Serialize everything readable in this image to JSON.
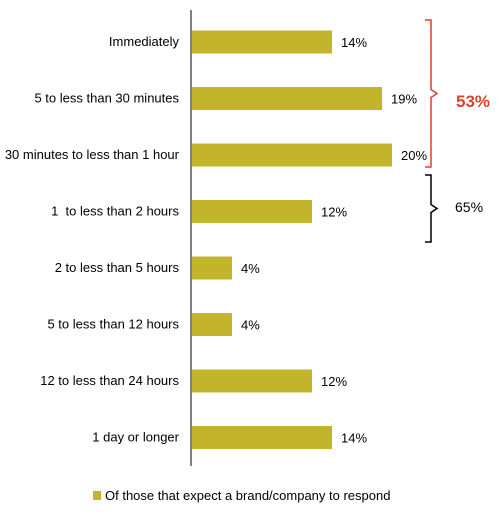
{
  "chart_data": {
    "type": "bar",
    "orientation": "horizontal",
    "categories": [
      "Immediately",
      "5 to less than 30 minutes",
      "30 minutes to less than 1 hour",
      "1  to less than 2 hours",
      "2 to less than 5 hours",
      "5 to less than 12 hours",
      "12 to less than 24 hours",
      "1 day or longer"
    ],
    "series": [
      {
        "name": "Of those that expect a brand/company to respond",
        "values": [
          14,
          19,
          20,
          12,
          4,
          4,
          12,
          14
        ],
        "color": "#c2b52b"
      }
    ],
    "value_labels": [
      "14%",
      "19%",
      "20%",
      "12%",
      "4%",
      "4%",
      "12%",
      "14%"
    ],
    "xlim": [
      0,
      20
    ],
    "grid": false,
    "legend_position": "bottom",
    "annotations": [
      {
        "text": "53%",
        "range": [
          0,
          2
        ],
        "color": "#d9432b"
      },
      {
        "text": "65%",
        "range": [
          3,
          3
        ],
        "color": "#000000"
      }
    ]
  }
}
